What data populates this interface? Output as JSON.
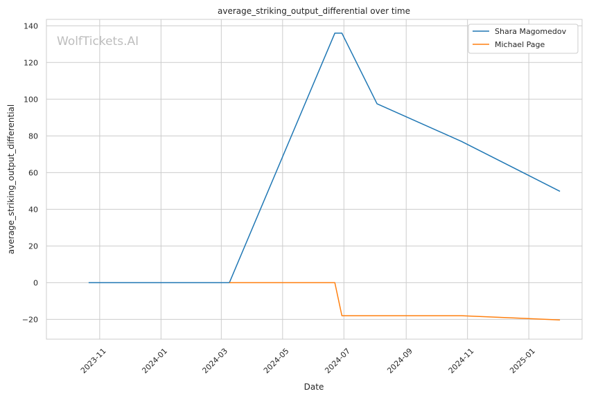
{
  "chart_data": {
    "type": "line",
    "title": "average_striking_output_differential over time",
    "xlabel": "Date",
    "ylabel": "average_striking_output_differential",
    "watermark": "WolfTickets.AI",
    "x_axis_type": "date",
    "xlim": [
      "2023-09-09",
      "2025-02-23"
    ],
    "ylim": [
      -30.8,
      143.5
    ],
    "x_ticks": [
      {
        "date": "2023-11-01",
        "label": "2023-11"
      },
      {
        "date": "2024-01-01",
        "label": "2024-01"
      },
      {
        "date": "2024-03-01",
        "label": "2024-03"
      },
      {
        "date": "2024-05-01",
        "label": "2024-05"
      },
      {
        "date": "2024-07-01",
        "label": "2024-07"
      },
      {
        "date": "2024-09-01",
        "label": "2024-09"
      },
      {
        "date": "2024-11-01",
        "label": "2024-11"
      },
      {
        "date": "2025-01-01",
        "label": "2025-01"
      }
    ],
    "y_ticks": [
      -20,
      0,
      20,
      40,
      60,
      80,
      100,
      120,
      140
    ],
    "y_tick_labels": [
      "−20",
      "0",
      "20",
      "40",
      "60",
      "80",
      "100",
      "120",
      "140"
    ],
    "grid": true,
    "legend_position": "top-right",
    "series": [
      {
        "name": "Shara Magomedov",
        "color": "#1f77b4",
        "points": [
          {
            "x": "2023-10-21",
            "y": 0
          },
          {
            "x": "2024-03-09",
            "y": 0
          },
          {
            "x": "2024-06-22",
            "y": 136
          },
          {
            "x": "2024-06-29",
            "y": 136
          },
          {
            "x": "2024-08-03",
            "y": 97.5
          },
          {
            "x": "2024-10-26",
            "y": 77
          },
          {
            "x": "2025-02-01",
            "y": 49.8
          }
        ]
      },
      {
        "name": "Michael Page",
        "color": "#ff7f0e",
        "points": [
          {
            "x": "2024-03-09",
            "y": 0
          },
          {
            "x": "2024-06-22",
            "y": 0
          },
          {
            "x": "2024-06-29",
            "y": -18
          },
          {
            "x": "2024-10-26",
            "y": -18
          },
          {
            "x": "2025-02-01",
            "y": -20.3
          }
        ]
      }
    ]
  }
}
